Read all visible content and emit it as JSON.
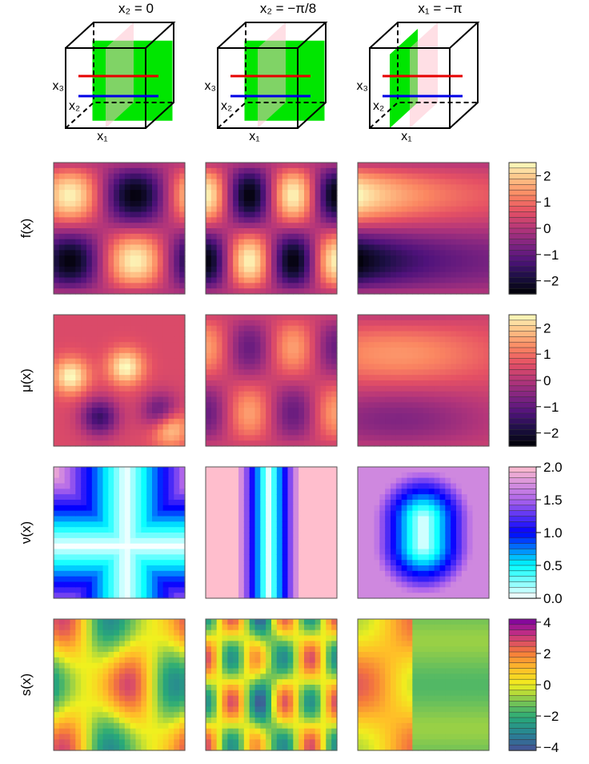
{
  "chart_data": {
    "type": "heatmap",
    "title": "",
    "columns": [
      {
        "header": "x₂ = 0",
        "cube_labels": {
          "x3": "x₃",
          "x2": "x₂",
          "x1": "x₁"
        }
      },
      {
        "header": "x₂ = −π/8",
        "cube_labels": {
          "x3": "x₃",
          "x2": "x₂",
          "x1": "x₁"
        }
      },
      {
        "header": "x₁ = −π",
        "cube_labels": {
          "x3": "x₃",
          "x2": "x₂",
          "x1": "x₁"
        }
      }
    ],
    "rows": [
      {
        "label": "f(x)",
        "colormap": "magma",
        "range": [
          -2.5,
          2.5
        ],
        "ticks": [
          "2",
          "1",
          "0",
          "−1",
          "−2"
        ],
        "tick_values": [
          2,
          1,
          0,
          -1,
          -2
        ]
      },
      {
        "label": "μ(x)",
        "colormap": "magma",
        "range": [
          -2.5,
          2.5
        ],
        "ticks": [
          "2",
          "1",
          "0",
          "−1",
          "−2"
        ],
        "tick_values": [
          2,
          1,
          0,
          -1,
          -2
        ]
      },
      {
        "label": "ν(x)",
        "colormap": "cool-white",
        "range": [
          0.0,
          2.0
        ],
        "ticks": [
          "2.0",
          "1.5",
          "1.0",
          "0.5",
          "0.0"
        ],
        "tick_values": [
          2.0,
          1.5,
          1.0,
          0.5,
          0.0
        ]
      },
      {
        "label": "s(x)",
        "colormap": "viridis-plasma",
        "range": [
          -4.2,
          4.2
        ],
        "ticks": [
          "4",
          "2",
          "0",
          "−2",
          "−4"
        ],
        "tick_values": [
          4,
          2,
          0,
          -2,
          -4
        ]
      }
    ],
    "colors": {
      "slice_plane": "#00e600",
      "ghost_plane": "#ffc0cb",
      "red_line": "#e60000",
      "blue_line": "#0000e6"
    }
  }
}
